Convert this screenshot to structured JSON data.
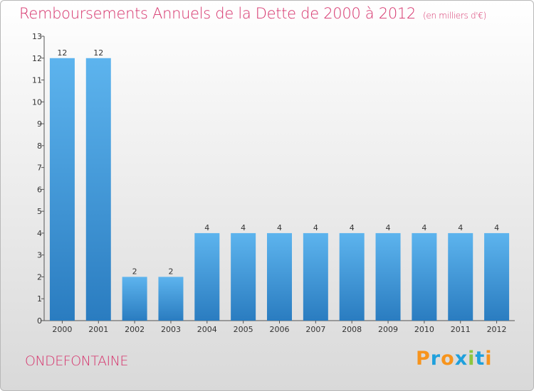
{
  "header": {
    "title": "Remboursements Annuels de la Dette de 2000 à 2012",
    "unit": "(en milliers d'€)"
  },
  "footer": {
    "commune": "ONDEFONTAINE",
    "logo_text": "Proxiti",
    "logo_colors": [
      "#f7941d",
      "#1fa0dc",
      "#f7941d",
      "#1fa0dc",
      "#8cc63f",
      "#1fa0dc",
      "#f7941d"
    ]
  },
  "colors": {
    "title": "#d6336c",
    "bar_light": "#5db4ee",
    "bar_dark": "#2a7cc0"
  },
  "chart_data": {
    "type": "bar",
    "title": "Remboursements Annuels de la Dette de 2000 à 2012",
    "xlabel": "",
    "ylabel": "",
    "categories": [
      "2000",
      "2001",
      "2002",
      "2003",
      "2004",
      "2005",
      "2006",
      "2007",
      "2008",
      "2009",
      "2010",
      "2011",
      "2012"
    ],
    "values": [
      12,
      12,
      2,
      2,
      4,
      4,
      4,
      4,
      4,
      4,
      4,
      4,
      4
    ],
    "ylim": [
      0,
      13
    ],
    "yticks": [
      0,
      1,
      2,
      3,
      4,
      5,
      6,
      7,
      8,
      9,
      10,
      11,
      12,
      13
    ],
    "grid": false,
    "data_labels": true
  }
}
